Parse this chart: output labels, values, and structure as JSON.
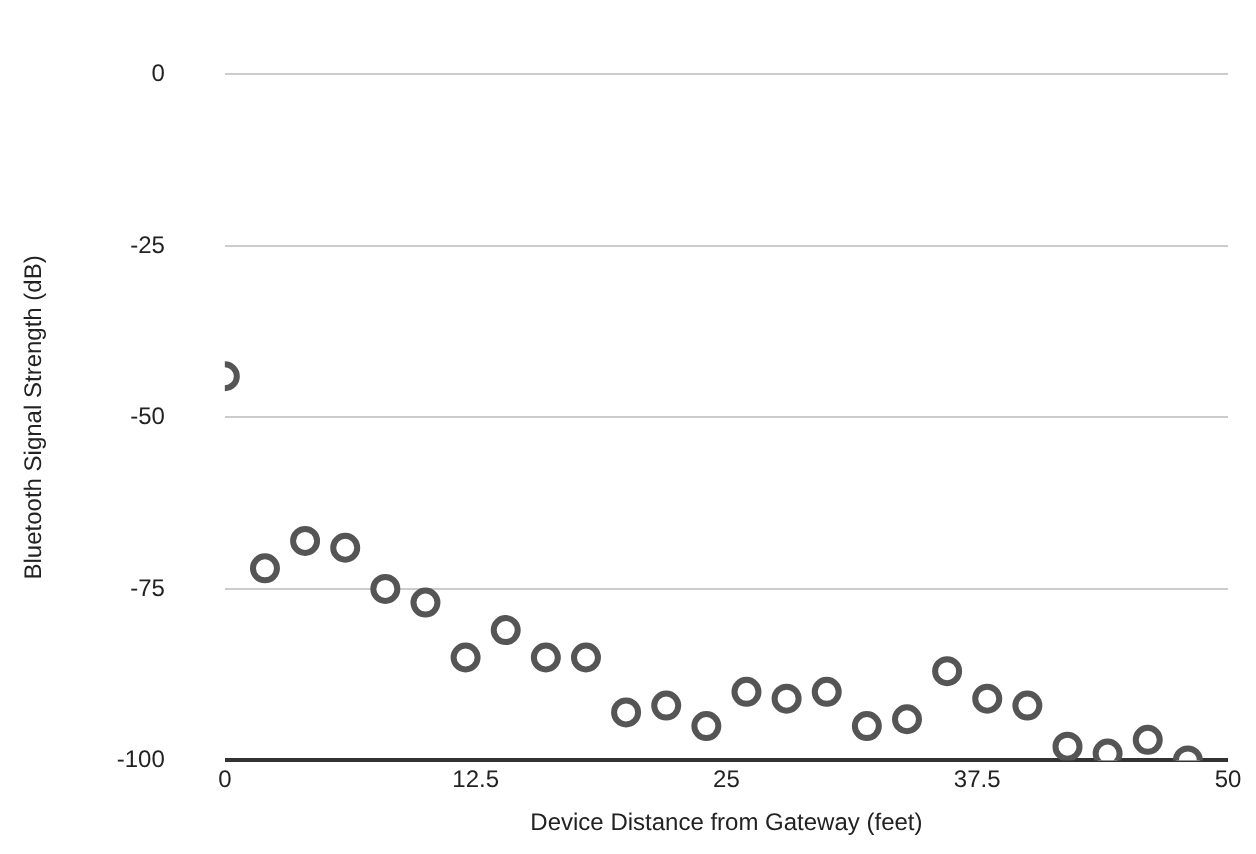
{
  "chart_data": {
    "type": "scatter",
    "xlabel": "Device Distance from Gateway (feet)",
    "ylabel": "Bluetooth Signal Strength (dB)",
    "x": [
      0,
      2,
      4,
      6,
      8,
      10,
      12,
      14,
      16,
      18,
      20,
      22,
      24,
      26,
      28,
      30,
      32,
      34,
      36,
      38,
      40,
      42,
      44,
      46,
      48
    ],
    "series": [
      {
        "color": "#555555",
        "values": [
          -44,
          -72,
          -68,
          -69,
          -75,
          -77,
          -85,
          -81,
          -85,
          -85,
          -93,
          -92,
          -95,
          -90,
          -91,
          -90,
          -95,
          -94,
          -87,
          -91,
          -92,
          -98,
          -99,
          -97,
          -100
        ]
      }
    ],
    "xlim": [
      0,
      50
    ],
    "xticks": [
      0,
      12.5,
      25,
      37.5,
      50
    ],
    "ylim": [
      -100,
      0
    ],
    "yticks": [
      0,
      -25,
      -50,
      -75,
      -100
    ],
    "grid": "y",
    "legend": false,
    "marker": "circle"
  }
}
